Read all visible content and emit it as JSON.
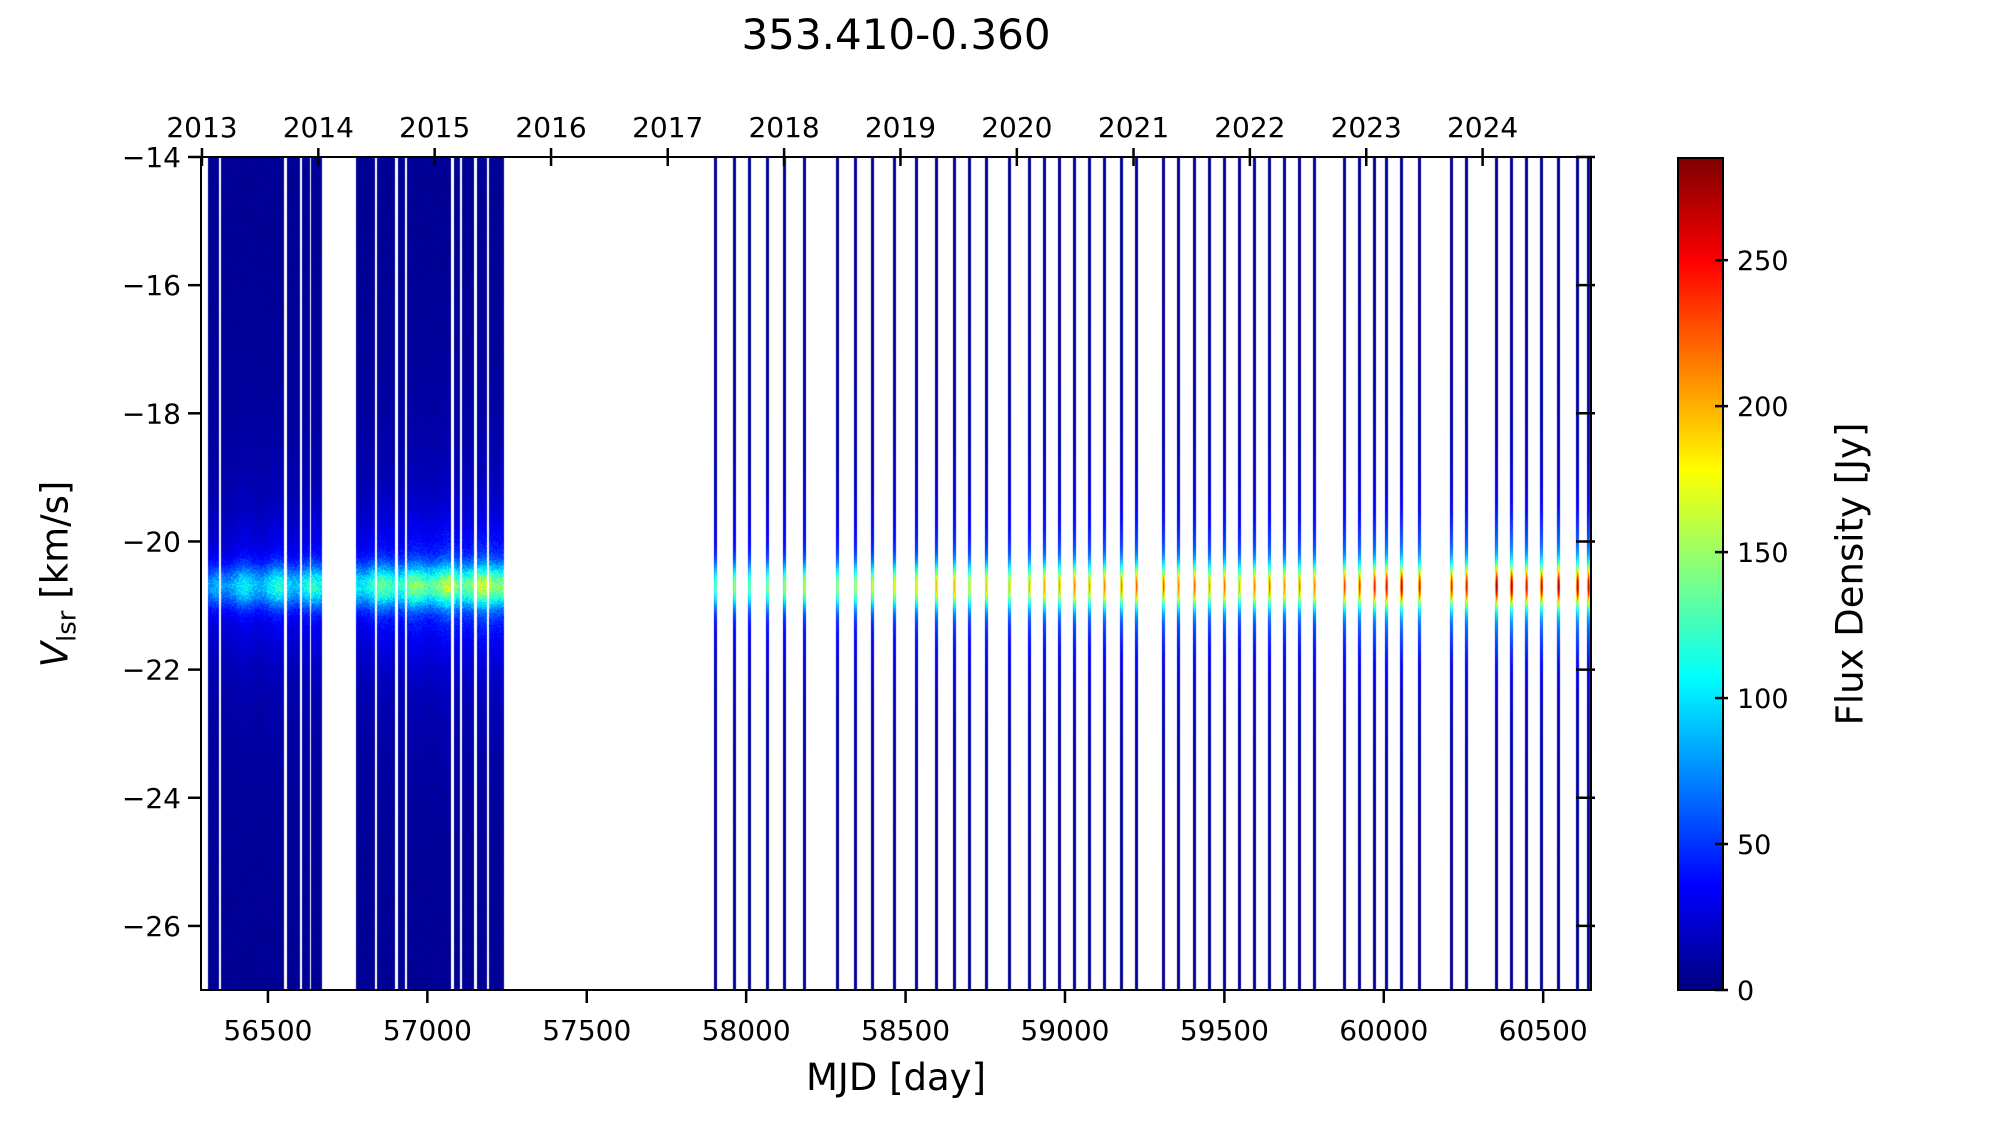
{
  "title": "353.410-0.360",
  "chart_data": {
    "type": "heatmap",
    "title": "353.410-0.360",
    "xlabel": "MJD [day]",
    "ylabel": {
      "var": "V",
      "sub": "lsr",
      "unit": " [km/s]"
    },
    "xlim": [
      56290,
      60650
    ],
    "ylim": [
      -27.0,
      -14.0
    ],
    "background_flux_jy": 6,
    "line_center_kms": -20.7,
    "line_core_sigma_kms": 0.22,
    "x_ticks_bottom": {
      "values": [
        56500,
        57000,
        57500,
        58000,
        58500,
        59000,
        59500,
        60000,
        60500
      ],
      "labels": [
        "56500",
        "57000",
        "57500",
        "58000",
        "58500",
        "59000",
        "59500",
        "60000",
        "60500"
      ]
    },
    "x_ticks_top": {
      "values": [
        56293,
        56658,
        57023,
        57388,
        57754,
        58119,
        58484,
        58849,
        59215,
        59580,
        59945,
        60310
      ],
      "labels": [
        "2013",
        "2014",
        "2015",
        "2016",
        "2017",
        "2018",
        "2019",
        "2020",
        "2021",
        "2022",
        "2023",
        "2024"
      ]
    },
    "y_ticks": {
      "values": [
        -14,
        -16,
        -18,
        -20,
        -22,
        -24,
        -26
      ],
      "labels": [
        "−14",
        "−16",
        "−18",
        "−20",
        "−22",
        "−24",
        "−26"
      ]
    },
    "colorbar": {
      "label": "Flux Density [Jy]",
      "colormap": "jet",
      "vmin": 0,
      "vmax": 285,
      "ticks": {
        "values": [
          0,
          50,
          100,
          150,
          200,
          250
        ],
        "labels": [
          "0",
          "50",
          "100",
          "150",
          "200",
          "250"
        ]
      }
    },
    "dense_segments": [
      {
        "start": 56313,
        "end": 56345,
        "p0": 55,
        "p1": 80
      },
      {
        "start": 56355,
        "end": 56548,
        "p0": 80,
        "p1": 100
      },
      {
        "start": 56560,
        "end": 56600,
        "p0": 95,
        "p1": 95
      },
      {
        "start": 56608,
        "end": 56630,
        "p0": 100,
        "p1": 100
      },
      {
        "start": 56638,
        "end": 56668,
        "p0": 100,
        "p1": 105
      },
      {
        "start": 56778,
        "end": 56833,
        "p0": 105,
        "p1": 115
      },
      {
        "start": 56845,
        "end": 56896,
        "p0": 115,
        "p1": 125
      },
      {
        "start": 56910,
        "end": 56928,
        "p0": 120,
        "p1": 120
      },
      {
        "start": 56938,
        "end": 57073,
        "p0": 125,
        "p1": 145
      },
      {
        "start": 57085,
        "end": 57100,
        "p0": 135,
        "p1": 135
      },
      {
        "start": 57110,
        "end": 57146,
        "p0": 140,
        "p1": 140
      },
      {
        "start": 57158,
        "end": 57185,
        "p0": 145,
        "p1": 145
      },
      {
        "start": 57195,
        "end": 57238,
        "p0": 150,
        "p1": 150
      }
    ],
    "epochs": [
      [
        57902,
        140
      ],
      [
        57962,
        150
      ],
      [
        58009,
        145
      ],
      [
        58065,
        155
      ],
      [
        58118,
        150
      ],
      [
        58181,
        160
      ],
      [
        58284,
        165
      ],
      [
        58340,
        170
      ],
      [
        58394,
        165
      ],
      [
        58465,
        175
      ],
      [
        58534,
        180
      ],
      [
        58597,
        195
      ],
      [
        58653,
        200
      ],
      [
        58700,
        185
      ],
      [
        58753,
        190
      ],
      [
        58825,
        195
      ],
      [
        58888,
        200
      ],
      [
        58935,
        205
      ],
      [
        58982,
        210
      ],
      [
        59029,
        215
      ],
      [
        59076,
        210
      ],
      [
        59123,
        215
      ],
      [
        59176,
        220
      ],
      [
        59223,
        225
      ],
      [
        59308,
        230
      ],
      [
        59355,
        215
      ],
      [
        59405,
        225
      ],
      [
        59452,
        210
      ],
      [
        59499,
        220
      ],
      [
        59546,
        200
      ],
      [
        59593,
        215
      ],
      [
        59640,
        225
      ],
      [
        59687,
        210
      ],
      [
        59734,
        220
      ],
      [
        59781,
        215
      ],
      [
        59875,
        235
      ],
      [
        59922,
        240
      ],
      [
        59969,
        250
      ],
      [
        60006,
        260
      ],
      [
        60053,
        275
      ],
      [
        60110,
        255
      ],
      [
        60210,
        250
      ],
      [
        60257,
        255
      ],
      [
        60351,
        280
      ],
      [
        60398,
        285
      ],
      [
        60445,
        260
      ],
      [
        60492,
        270
      ],
      [
        60548,
        280
      ],
      [
        60607,
        275
      ],
      [
        60640,
        265
      ]
    ]
  }
}
